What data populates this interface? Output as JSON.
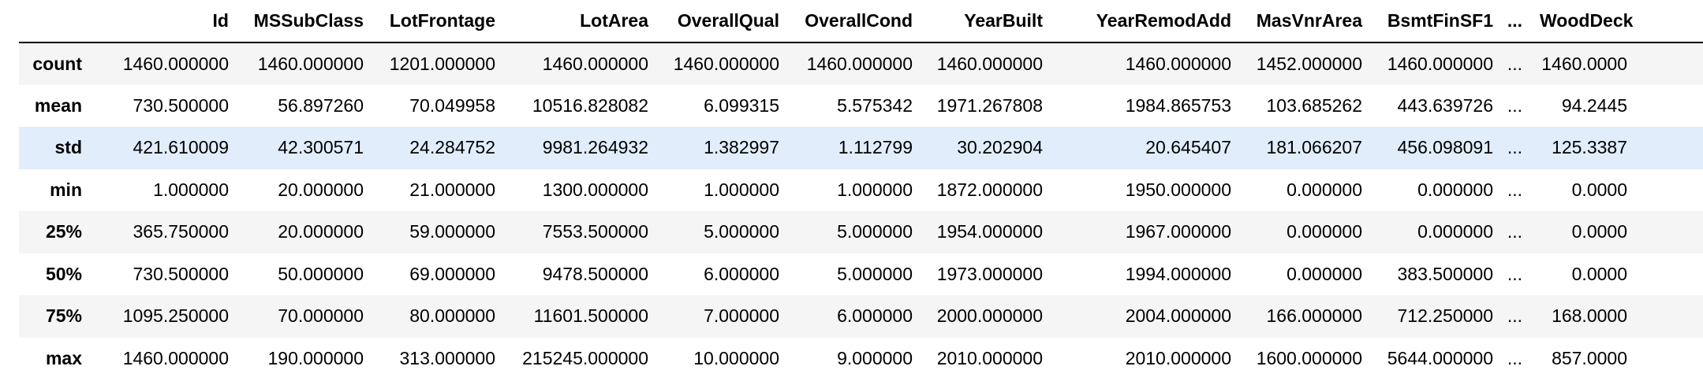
{
  "table": {
    "index_header": "",
    "columns": [
      "Id",
      "MSSubClass",
      "LotFrontage",
      "LotArea",
      "OverallQual",
      "OverallCond",
      "YearBuilt",
      "YearRemodAdd",
      "MasVnrArea",
      "BsmtFinSF1",
      "...",
      "WoodDeck"
    ],
    "rows": [
      {
        "label": "count",
        "cells": [
          "1460.000000",
          "1460.000000",
          "1201.000000",
          "1460.000000",
          "1460.000000",
          "1460.000000",
          "1460.000000",
          "1460.000000",
          "1452.000000",
          "1460.000000",
          "...",
          "1460.0000"
        ]
      },
      {
        "label": "mean",
        "cells": [
          "730.500000",
          "56.897260",
          "70.049958",
          "10516.828082",
          "6.099315",
          "5.575342",
          "1971.267808",
          "1984.865753",
          "103.685262",
          "443.639726",
          "...",
          "94.2445"
        ]
      },
      {
        "label": "std",
        "cells": [
          "421.610009",
          "42.300571",
          "24.284752",
          "9981.264932",
          "1.382997",
          "1.112799",
          "30.202904",
          "20.645407",
          "181.066207",
          "456.098091",
          "...",
          "125.3387"
        ]
      },
      {
        "label": "min",
        "cells": [
          "1.000000",
          "20.000000",
          "21.000000",
          "1300.000000",
          "1.000000",
          "1.000000",
          "1872.000000",
          "1950.000000",
          "0.000000",
          "0.000000",
          "...",
          "0.0000"
        ]
      },
      {
        "label": "25%",
        "cells": [
          "365.750000",
          "20.000000",
          "59.000000",
          "7553.500000",
          "5.000000",
          "5.000000",
          "1954.000000",
          "1967.000000",
          "0.000000",
          "0.000000",
          "...",
          "0.0000"
        ]
      },
      {
        "label": "50%",
        "cells": [
          "730.500000",
          "50.000000",
          "69.000000",
          "9478.500000",
          "6.000000",
          "5.000000",
          "1973.000000",
          "1994.000000",
          "0.000000",
          "383.500000",
          "...",
          "0.0000"
        ]
      },
      {
        "label": "75%",
        "cells": [
          "1095.250000",
          "70.000000",
          "80.000000",
          "11601.500000",
          "7.000000",
          "6.000000",
          "2000.000000",
          "2004.000000",
          "166.000000",
          "712.250000",
          "...",
          "168.0000"
        ]
      },
      {
        "label": "max",
        "cells": [
          "1460.000000",
          "190.000000",
          "313.000000",
          "215245.000000",
          "10.000000",
          "9.000000",
          "2010.000000",
          "2010.000000",
          "1600.000000",
          "5644.000000",
          "...",
          "857.0000"
        ]
      }
    ],
    "highlight_row": 2,
    "colors": {
      "odd_row": "#f5f5f5",
      "even_row": "#ffffff",
      "hover_row": "#e1edfb",
      "header_rule": "#000000"
    }
  }
}
